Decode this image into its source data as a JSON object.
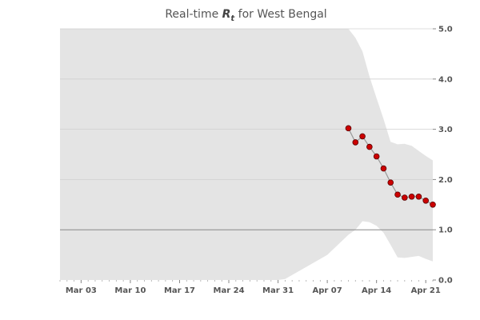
{
  "chart_data": {
    "type": "line",
    "title_prefix": "Real-time ",
    "title_symbol": "R",
    "title_subscript": "t",
    "title_suffix": " for West Bengal",
    "xlabel": "",
    "ylabel": "",
    "x_range": [
      "2020-02-29",
      "2020-04-22"
    ],
    "ylim": [
      0,
      5
    ],
    "y_ticks": [
      0.0,
      1.0,
      2.0,
      3.0,
      4.0,
      5.0
    ],
    "y_tick_labels": [
      "0.0",
      "1.0",
      "2.0",
      "3.0",
      "4.0",
      "5.0"
    ],
    "y_axis_position": "right",
    "x_ticks": [
      "2020-03-03",
      "2020-03-10",
      "2020-03-17",
      "2020-03-24",
      "2020-03-31",
      "2020-04-07",
      "2020-04-14",
      "2020-04-21"
    ],
    "x_tick_labels": [
      "Mar 03",
      "Mar 10",
      "Mar 17",
      "Mar 24",
      "Mar 31",
      "Apr 07",
      "Apr 14",
      "Apr 21"
    ],
    "reference_line": 1.0,
    "grid": true,
    "colors": {
      "band": "#e4e4e4",
      "points": "#cc0000",
      "point_edge": "#5a0000",
      "line": "#999999",
      "reference": "#888888",
      "grid": "#d0d0d0"
    },
    "band": {
      "x": [
        "2020-02-29",
        "2020-03-31",
        "2020-04-01",
        "2020-04-04",
        "2020-04-07",
        "2020-04-10",
        "2020-04-11",
        "2020-04-12",
        "2020-04-13",
        "2020-04-14",
        "2020-04-15",
        "2020-04-16",
        "2020-04-17",
        "2020-04-18",
        "2020-04-19",
        "2020-04-20",
        "2020-04-21",
        "2020-04-22"
      ],
      "lower": [
        0,
        0,
        0.02,
        0.26,
        0.5,
        0.9,
        1.0,
        1.17,
        1.15,
        1.08,
        0.94,
        0.7,
        0.45,
        0.44,
        0.46,
        0.48,
        0.42,
        0.37
      ],
      "upper": [
        5,
        5,
        5,
        5,
        5,
        5,
        4.82,
        4.55,
        4.05,
        3.62,
        3.2,
        2.75,
        2.7,
        2.71,
        2.67,
        2.57,
        2.47,
        2.38
      ]
    },
    "series": [
      {
        "x": [
          "2020-04-10",
          "2020-04-11",
          "2020-04-12",
          "2020-04-13",
          "2020-04-14",
          "2020-04-15",
          "2020-04-16",
          "2020-04-17",
          "2020-04-18",
          "2020-04-19",
          "2020-04-20",
          "2020-04-21",
          "2020-04-22"
        ],
        "values": [
          3.02,
          2.74,
          2.86,
          2.65,
          2.46,
          2.22,
          1.94,
          1.7,
          1.64,
          1.66,
          1.66,
          1.58,
          1.5
        ]
      }
    ]
  }
}
